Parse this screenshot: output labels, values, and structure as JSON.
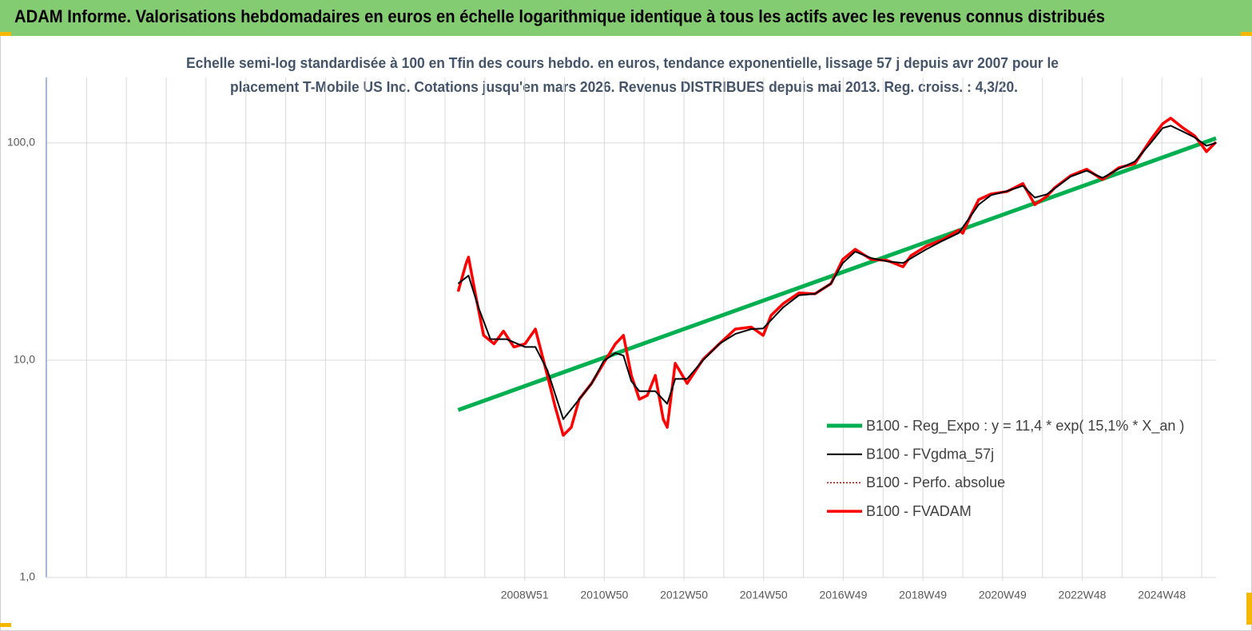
{
  "chart_data": {
    "type": "line",
    "title": "ADAM Informe. Valorisations hebdomadaires en euros en échelle logarithmique identique à tous les actifs avec les revenus connus distribués",
    "subtitle": [
      "Echelle semi-log standardisée à 100 en Tfin des cours hebdo. en euros, tendance exponentielle, lissage 57 j depuis avr 2007 pour le",
      "placement T-Mobile US Inc. Cotations jusqu'en mars 2026.  Revenus DISTRIBUES depuis mai 2013. Reg. croiss. : 4,3/20."
    ],
    "log_scale": true,
    "grid": true,
    "legend": "right",
    "xlim": [
      1996.95,
      2026.32
    ],
    "xticks": [
      {
        "value": 2008.96,
        "label": "2008W51"
      },
      {
        "value": 2010.96,
        "label": "2010W50"
      },
      {
        "value": 2012.96,
        "label": "2012W50"
      },
      {
        "value": 2014.96,
        "label": "2014W50"
      },
      {
        "value": 2016.96,
        "label": "2016W49"
      },
      {
        "value": 2018.96,
        "label": "2018W49"
      },
      {
        "value": 2020.96,
        "label": "2020W49"
      },
      {
        "value": 2022.96,
        "label": "2022W48"
      },
      {
        "value": 2024.96,
        "label": "2024W48"
      }
    ],
    "xgrid": [
      1997.96,
      1998.96,
      1999.96,
      2000.96,
      2001.96,
      2002.96,
      2003.96,
      2004.96,
      2005.96,
      2006.96,
      2007.96,
      2008.96,
      2009.96,
      2010.96,
      2011.96,
      2012.96,
      2013.96,
      2014.96,
      2015.96,
      2016.96,
      2017.96,
      2018.96,
      2019.96,
      2020.96,
      2021.96,
      2022.96,
      2023.96,
      2024.96,
      2025.96
    ],
    "ylim": [
      1,
      200
    ],
    "yticks": [
      {
        "value": 1,
        "label": "1,0"
      },
      {
        "value": 10,
        "label": "10,0"
      },
      {
        "value": 100,
        "label": "100,0"
      }
    ],
    "series": [
      {
        "name": "B100 - Reg_Expo : y = 11,4 * exp( 15,1% *  X_an )",
        "color": "#00b050",
        "line_width": 5,
        "style": "solid",
        "x": [
          2007.29,
          2026.32
        ],
        "values": [
          5.9,
          105
        ]
      },
      {
        "name": "B100 - FVgdma_57j",
        "color": "#000000",
        "line_width": 2,
        "style": "solid",
        "x": [
          2007.29,
          2007.55,
          2007.8,
          2008.1,
          2008.5,
          2008.97,
          2009.23,
          2009.53,
          2009.93,
          2010.33,
          2010.64,
          2010.94,
          2011.24,
          2011.44,
          2011.64,
          2011.84,
          2012.24,
          2012.54,
          2012.74,
          2013.04,
          2013.44,
          2013.85,
          2014.25,
          2014.65,
          2014.95,
          2015.45,
          2015.85,
          2016.25,
          2016.65,
          2016.95,
          2017.26,
          2017.66,
          2018.06,
          2018.46,
          2019.06,
          2019.46,
          2019.86,
          2020.36,
          2020.67,
          2021.07,
          2021.47,
          2021.77,
          2022.07,
          2022.67,
          2023.07,
          2023.47,
          2023.88,
          2024.28,
          2024.68,
          2024.98,
          2025.18,
          2025.48,
          2025.78,
          2026.08,
          2026.32
        ],
        "values": [
          22.5,
          24.5,
          17.5,
          12.5,
          12.5,
          11.5,
          11.5,
          9.0,
          5.35,
          6.6,
          7.8,
          9.9,
          10.8,
          10.5,
          8.0,
          7.2,
          7.2,
          6.3,
          8.2,
          8.2,
          10.0,
          11.9,
          13.2,
          13.9,
          14.0,
          17.5,
          19.9,
          20.2,
          22.5,
          28.0,
          31.6,
          29.5,
          28.5,
          28.0,
          32.5,
          35.5,
          38.5,
          52,
          57.5,
          60,
          63.5,
          56,
          58,
          70,
          74.5,
          69,
          76,
          82,
          100,
          117,
          120,
          113,
          106,
          97,
          100
        ]
      },
      {
        "name": "B100 - Perfo. absolue",
        "color": "#c00000",
        "line_width": 1.5,
        "style": "dotted",
        "x": [
          2007.29,
          2007.49,
          2007.55,
          2007.73,
          2007.93,
          2008.19,
          2008.43,
          2008.69,
          2008.97,
          2009.23,
          2009.53,
          2009.73,
          2009.93,
          2010.13,
          2010.33,
          2010.64,
          2010.94,
          2011.24,
          2011.44,
          2011.64,
          2011.84,
          2012.04,
          2012.24,
          2012.44,
          2012.54,
          2012.74,
          2013.04,
          2013.44,
          2013.85,
          2014.25,
          2014.65,
          2014.95,
          2015.15,
          2015.45,
          2015.85,
          2016.25,
          2016.65,
          2016.95,
          2017.26,
          2017.66,
          2018.06,
          2018.46,
          2018.66,
          2019.06,
          2019.46,
          2019.86,
          2019.96,
          2020.16,
          2020.36,
          2020.67,
          2021.07,
          2021.47,
          2021.77,
          2022.07,
          2022.27,
          2022.67,
          2023.07,
          2023.47,
          2023.88,
          2024.28,
          2024.68,
          2024.98,
          2025.18,
          2025.48,
          2025.78,
          2025.98,
          2026.08,
          2026.32
        ],
        "values": [
          20.7,
          27.9,
          29.8,
          19.9,
          13.0,
          11.9,
          13.6,
          11.5,
          11.9,
          13.9,
          8.51,
          6.07,
          4.51,
          4.91,
          6.61,
          7.82,
          9.67,
          11.9,
          13.0,
          8.51,
          6.61,
          6.89,
          8.51,
          5.35,
          4.91,
          9.67,
          7.82,
          10.1,
          11.9,
          13.9,
          14.2,
          13.0,
          16.1,
          18.2,
          20.4,
          20.2,
          22.5,
          29.1,
          32.4,
          29.1,
          28.8,
          26.9,
          30.3,
          33.6,
          35.9,
          39.7,
          38.4,
          46.3,
          54.8,
          58.2,
          59.7,
          65.0,
          52,
          56.8,
          62.2,
          70.7,
          75.6,
          67.8,
          76.9,
          80.2,
          103.5,
          122.5,
          130,
          117.5,
          107.9,
          96.7,
          91.1,
          100.9
        ]
      },
      {
        "name": "B100 - FVADAM",
        "color": "#ff0000",
        "line_width": 3.5,
        "style": "solid",
        "x": [
          2007.29,
          2007.49,
          2007.55,
          2007.73,
          2007.93,
          2008.19,
          2008.43,
          2008.69,
          2008.97,
          2009.23,
          2009.53,
          2009.73,
          2009.93,
          2010.13,
          2010.33,
          2010.64,
          2010.94,
          2011.24,
          2011.44,
          2011.64,
          2011.84,
          2012.04,
          2012.24,
          2012.44,
          2012.54,
          2012.74,
          2013.04,
          2013.44,
          2013.85,
          2014.25,
          2014.65,
          2014.95,
          2015.15,
          2015.45,
          2015.85,
          2016.25,
          2016.65,
          2016.95,
          2017.26,
          2017.66,
          2018.06,
          2018.46,
          2018.66,
          2019.06,
          2019.46,
          2019.86,
          2019.96,
          2020.16,
          2020.36,
          2020.67,
          2021.07,
          2021.47,
          2021.77,
          2022.07,
          2022.27,
          2022.67,
          2023.07,
          2023.47,
          2023.88,
          2024.28,
          2024.68,
          2024.98,
          2025.18,
          2025.48,
          2025.78,
          2025.98,
          2026.08,
          2026.32
        ],
        "values": [
          20.7,
          27.9,
          29.8,
          19.9,
          13.0,
          11.9,
          13.6,
          11.5,
          11.9,
          13.9,
          8.51,
          6.07,
          4.51,
          4.91,
          6.61,
          7.82,
          9.67,
          11.9,
          13.0,
          8.51,
          6.61,
          6.89,
          8.51,
          5.35,
          4.91,
          9.67,
          7.82,
          10.1,
          11.9,
          13.9,
          14.2,
          13.0,
          16.1,
          18.2,
          20.4,
          20.2,
          22.5,
          29.1,
          32.4,
          29.1,
          28.8,
          26.9,
          30.3,
          33.6,
          35.9,
          39.7,
          38.4,
          46.3,
          54.8,
          58.2,
          59.7,
          65.0,
          52,
          56.8,
          62.2,
          70.7,
          75.6,
          67.8,
          76.9,
          80.2,
          103.5,
          122.5,
          130,
          117.5,
          107.9,
          96.7,
          91.1,
          100.9
        ]
      }
    ]
  }
}
